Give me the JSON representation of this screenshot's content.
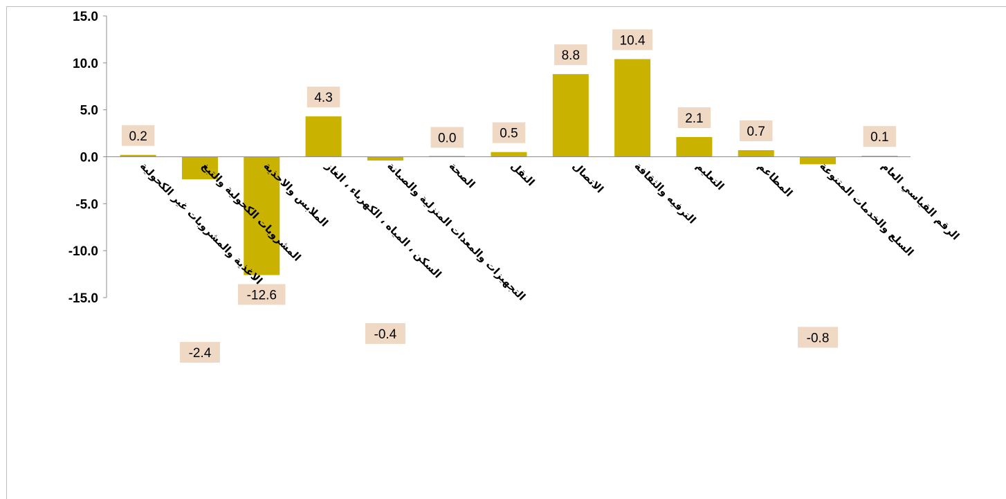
{
  "chart_data": {
    "type": "bar",
    "categories": [
      "الاغذية والمشروبات غير الكحولية",
      "المشروبات الكحولية والتبغ",
      "الملابس والاحذية",
      "السكن ، المياه ، الكهرباء ، الغاز",
      "التجهيزات والمعدات المنزلية والصيانة",
      "الصحة",
      "النقل",
      "الاتصال",
      "الترفيه والثقافة",
      "التعليم",
      "المطاعم",
      "السلع والخدمات المتنوعة",
      "الرقم القياسي العام"
    ],
    "values": [
      0.2,
      -2.4,
      -12.6,
      4.3,
      -0.4,
      0.0,
      0.5,
      8.8,
      10.4,
      2.1,
      0.7,
      -0.8,
      0.1
    ],
    "value_labels": [
      "0.2",
      "-2.4",
      "-12.6",
      "4.3",
      "-0.4",
      "0.0",
      "0.5",
      "8.8",
      "10.4",
      "2.1",
      "0.7",
      "-0.8",
      "0.1"
    ],
    "ylim": [
      -15,
      15
    ],
    "yticks": [
      15,
      10,
      5,
      0,
      -5,
      -10,
      -15
    ],
    "ytick_labels": [
      "15.0",
      "10.0",
      "5.0",
      "0.0",
      "-5.0",
      "-10.0",
      "-15.0"
    ],
    "grid": false,
    "legend": "none",
    "colors": {
      "bar": "#C9B200",
      "label_bg": "#F0D9C4",
      "axis": "#8c8c8c"
    }
  }
}
